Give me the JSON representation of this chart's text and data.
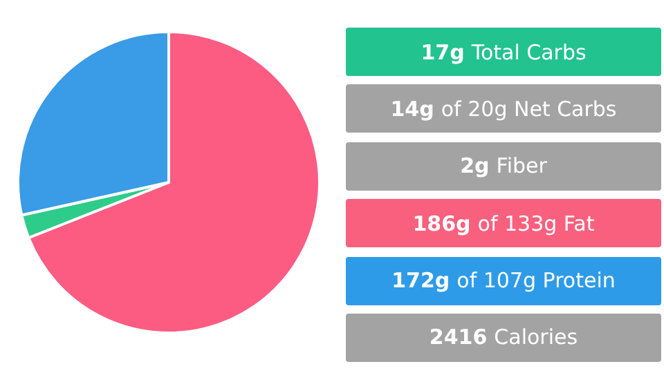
{
  "chart_data": [
    {
      "type": "pie",
      "categories": [
        null,
        null,
        null
      ],
      "values": [
        69,
        2.5,
        28.5
      ],
      "colors": [
        "#fc5c82",
        "#2ecc8a",
        "#3a9be6"
      ]
    },
    {
      "type": "other",
      "annotations": [
        "17g Total Carbs",
        "14g of 20g Net Carbs",
        "2g Fiber",
        "186g of 133g Fat",
        "172g of 107g Protein",
        "2416 Calories"
      ],
      "colors": [
        "#22c38e",
        "#a3a3a3",
        "#a3a3a3",
        "#f8607e",
        "#2e9be8",
        "#a3a3a3"
      ]
    }
  ]
}
